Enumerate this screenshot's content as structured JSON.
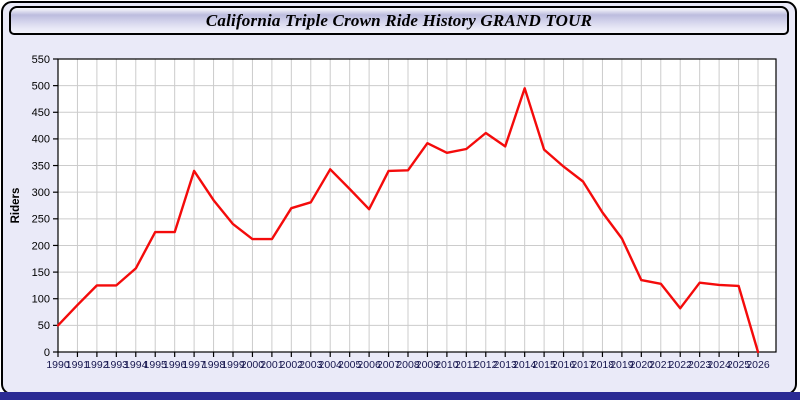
{
  "window": {
    "title": "California Triple Crown Ride History GRAND TOUR"
  },
  "chart_data": {
    "type": "line",
    "title": "California Triple Crown Ride History GRAND TOUR",
    "xlabel": "",
    "ylabel": "Riders",
    "x": [
      1990,
      1991,
      1992,
      1993,
      1994,
      1995,
      1996,
      1997,
      1998,
      1999,
      2000,
      2001,
      2002,
      2003,
      2004,
      2005,
      2006,
      2007,
      2008,
      2009,
      2010,
      2011,
      2012,
      2013,
      2014,
      2015,
      2016,
      2017,
      2018,
      2019,
      2020,
      2021,
      2022,
      2023,
      2024,
      2025,
      2026
    ],
    "series": [
      {
        "name": "Riders",
        "values": [
          50,
          88,
          125,
          125,
          157,
          225,
          225,
          340,
          285,
          240,
          212,
          212,
          270,
          281,
          343,
          306,
          268,
          340,
          341,
          392,
          374,
          381,
          411,
          386,
          495,
          380,
          348,
          320,
          262,
          213,
          135,
          128,
          82,
          130,
          126,
          124,
          0
        ]
      }
    ],
    "ylim": [
      0,
      550
    ],
    "ytick_step": 50,
    "grid": true,
    "legend_position": "none"
  },
  "colors": {
    "line": "#f40b0b",
    "plot_bg": "#ffffff",
    "grid": "#cccccc",
    "axis": "#000000",
    "y_tick_label": "#000000",
    "x_tick_label": "#16164e",
    "page_bg": "#eaeaf8",
    "bottom_strip": "#2b2b94"
  }
}
